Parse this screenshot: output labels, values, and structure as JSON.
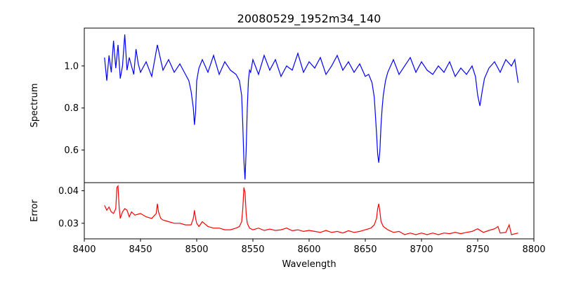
{
  "chart_data": {
    "type": "line",
    "title": "20080529_1952m34_140",
    "xlabel": "Wavelength",
    "xlim": [
      8400,
      8800
    ],
    "xticks": [
      8400,
      8450,
      8500,
      8550,
      8600,
      8650,
      8700,
      8750,
      8800
    ],
    "panels": [
      {
        "name": "spectrum",
        "ylabel": "Spectrum",
        "ylim": [
          0.445,
          1.18
        ],
        "yticks": [
          0.6,
          0.8,
          1.0
        ],
        "ytick_labels": [
          "0.6",
          "0.8",
          "1.0"
        ],
        "color": "#0000ff",
        "x": [
          8418,
          8420,
          8422,
          8424,
          8426,
          8428,
          8430,
          8432,
          8434,
          8436,
          8438,
          8440,
          8442,
          8444,
          8446,
          8448,
          8450,
          8455,
          8460,
          8465,
          8470,
          8475,
          8480,
          8485,
          8490,
          8493,
          8495,
          8497,
          8498,
          8499,
          8500,
          8502,
          8505,
          8510,
          8515,
          8520,
          8525,
          8530,
          8535,
          8538,
          8540,
          8541,
          8542,
          8543,
          8544,
          8545,
          8546,
          8547,
          8548,
          8550,
          8555,
          8560,
          8565,
          8570,
          8575,
          8580,
          8585,
          8590,
          8595,
          8600,
          8605,
          8610,
          8615,
          8620,
          8625,
          8630,
          8635,
          8640,
          8645,
          8650,
          8653,
          8656,
          8658,
          8660,
          8661,
          8662,
          8663,
          8664,
          8665,
          8666,
          8668,
          8670,
          8675,
          8680,
          8685,
          8690,
          8695,
          8700,
          8705,
          8710,
          8715,
          8720,
          8725,
          8730,
          8735,
          8740,
          8745,
          8748,
          8750,
          8752,
          8754,
          8756,
          8760,
          8765,
          8770,
          8775,
          8780,
          8783,
          8786
        ],
        "values": [
          1.04,
          0.93,
          1.05,
          0.97,
          1.12,
          0.99,
          1.1,
          0.94,
          1.0,
          1.15,
          0.98,
          1.04,
          1.0,
          0.96,
          1.08,
          1.01,
          0.97,
          1.02,
          0.95,
          1.1,
          0.98,
          1.03,
          0.97,
          1.01,
          0.96,
          0.93,
          0.88,
          0.8,
          0.72,
          0.78,
          0.93,
          0.99,
          1.03,
          0.97,
          1.05,
          0.96,
          1.02,
          0.98,
          0.96,
          0.93,
          0.86,
          0.72,
          0.55,
          0.46,
          0.6,
          0.8,
          0.93,
          0.98,
          0.97,
          1.03,
          0.96,
          1.05,
          0.98,
          1.03,
          0.95,
          1.0,
          0.98,
          1.06,
          0.97,
          1.02,
          0.99,
          1.04,
          0.96,
          1.0,
          1.05,
          0.98,
          1.02,
          0.97,
          1.01,
          0.95,
          0.96,
          0.92,
          0.85,
          0.68,
          0.58,
          0.54,
          0.6,
          0.72,
          0.8,
          0.86,
          0.93,
          0.97,
          1.03,
          0.96,
          1.0,
          1.04,
          0.97,
          1.02,
          0.98,
          0.96,
          1.0,
          0.97,
          1.02,
          0.95,
          0.99,
          0.96,
          1.0,
          0.95,
          0.86,
          0.81,
          0.88,
          0.94,
          0.99,
          1.02,
          0.97,
          1.03,
          1.0,
          1.03,
          0.92
        ]
      },
      {
        "name": "error",
        "ylabel": "Error",
        "ylim": [
          0.0252,
          0.0425
        ],
        "yticks": [
          0.03,
          0.04
        ],
        "ytick_labels": [
          "0.03",
          "0.04"
        ],
        "color": "#ff0000",
        "x": [
          8418,
          8420,
          8422,
          8424,
          8426,
          8428,
          8429,
          8430,
          8431,
          8432,
          8434,
          8436,
          8438,
          8440,
          8442,
          8445,
          8450,
          8455,
          8460,
          8464,
          8465,
          8466,
          8468,
          8470,
          8475,
          8480,
          8485,
          8490,
          8495,
          8497,
          8498,
          8499,
          8500,
          8502,
          8505,
          8510,
          8515,
          8520,
          8525,
          8530,
          8535,
          8538,
          8540,
          8541,
          8542,
          8543,
          8544,
          8545,
          8547,
          8550,
          8555,
          8560,
          8565,
          8570,
          8575,
          8580,
          8585,
          8590,
          8595,
          8600,
          8605,
          8610,
          8615,
          8620,
          8625,
          8630,
          8635,
          8640,
          8645,
          8650,
          8655,
          8658,
          8660,
          8661,
          8662,
          8663,
          8664,
          8666,
          8670,
          8675,
          8680,
          8685,
          8690,
          8695,
          8700,
          8705,
          8710,
          8715,
          8720,
          8725,
          8730,
          8735,
          8740,
          8745,
          8750,
          8755,
          8760,
          8765,
          8768,
          8770,
          8775,
          8778,
          8780,
          8786
        ],
        "values": [
          0.0355,
          0.034,
          0.035,
          0.0335,
          0.033,
          0.0345,
          0.041,
          0.0415,
          0.035,
          0.0315,
          0.0335,
          0.0345,
          0.034,
          0.032,
          0.0335,
          0.0325,
          0.033,
          0.032,
          0.0315,
          0.033,
          0.036,
          0.0335,
          0.0315,
          0.031,
          0.0305,
          0.03,
          0.03,
          0.0295,
          0.0295,
          0.0315,
          0.034,
          0.0315,
          0.03,
          0.029,
          0.0305,
          0.029,
          0.0285,
          0.0285,
          0.028,
          0.028,
          0.0285,
          0.029,
          0.0305,
          0.0345,
          0.041,
          0.0395,
          0.033,
          0.03,
          0.0285,
          0.028,
          0.0285,
          0.0278,
          0.0282,
          0.0278,
          0.028,
          0.0285,
          0.0277,
          0.028,
          0.0275,
          0.0278,
          0.0275,
          0.0272,
          0.0278,
          0.0272,
          0.0275,
          0.027,
          0.0277,
          0.0272,
          0.0275,
          0.028,
          0.0285,
          0.0295,
          0.0315,
          0.0345,
          0.036,
          0.0335,
          0.0305,
          0.029,
          0.028,
          0.0272,
          0.0275,
          0.0265,
          0.027,
          0.0265,
          0.027,
          0.0265,
          0.027,
          0.0265,
          0.027,
          0.0268,
          0.0272,
          0.0268,
          0.0272,
          0.0275,
          0.0283,
          0.0272,
          0.0278,
          0.0283,
          0.029,
          0.027,
          0.0272,
          0.0295,
          0.0265,
          0.027
        ]
      }
    ]
  }
}
